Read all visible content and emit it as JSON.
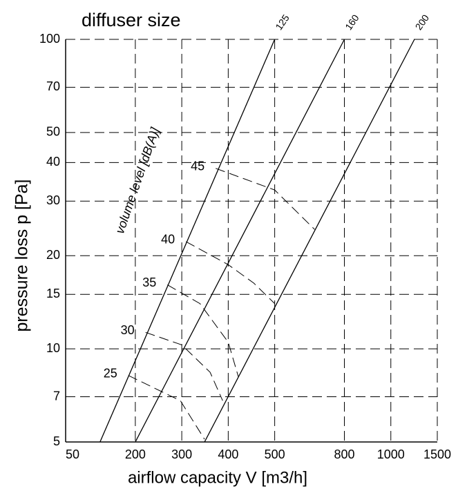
{
  "chart_data": {
    "type": "line",
    "title": "diffuser size",
    "x_label": "airflow capacity  V [m3/h]",
    "y_label": "pressure loss  p [Pa]",
    "annotation": "volume level  [dB(A)]",
    "xlim": [
      50,
      1500
    ],
    "xticks": [
      50,
      200,
      300,
      400,
      500,
      800,
      1000,
      1500
    ],
    "ylim": [
      5,
      100
    ],
    "yticks": [
      5,
      7,
      10,
      15,
      20,
      30,
      40,
      50,
      70,
      100
    ],
    "log_y": true,
    "grid": true,
    "series": [
      {
        "name": "125",
        "color": "#000000",
        "dashed": false,
        "x": [
          124,
          500
        ],
        "values": [
          5,
          100
        ]
      },
      {
        "name": "160",
        "color": "#000000",
        "dashed": false,
        "x": [
          200,
          800
        ],
        "values": [
          5,
          100
        ]
      },
      {
        "name": "200",
        "color": "#000000",
        "dashed": false,
        "x": [
          349,
          1254
        ],
        "values": [
          5,
          100
        ]
      },
      {
        "name": "45",
        "color": "#000000",
        "dashed": true,
        "x": [
          373,
          500,
          672
        ],
        "values": [
          38.3,
          32.6,
          24.3
        ]
      },
      {
        "name": "40",
        "color": "#000000",
        "dashed": true,
        "x": [
          309,
          400,
          455,
          500
        ],
        "values": [
          22.2,
          18.7,
          16.3,
          14.0
        ]
      },
      {
        "name": "35",
        "color": "#000000",
        "dashed": true,
        "x": [
          269,
          339,
          400,
          422
        ],
        "values": [
          16.1,
          14.0,
          10.5,
          8.1
        ]
      },
      {
        "name": "30",
        "color": "#000000",
        "dashed": true,
        "x": [
          222,
          300,
          361,
          388
        ],
        "values": [
          11.3,
          10.3,
          8.4,
          6.8
        ]
      },
      {
        "name": "25",
        "color": "#000000",
        "dashed": true,
        "x": [
          185,
          297,
          349
        ],
        "values": [
          8.2,
          6.8,
          5.1
        ]
      }
    ]
  }
}
